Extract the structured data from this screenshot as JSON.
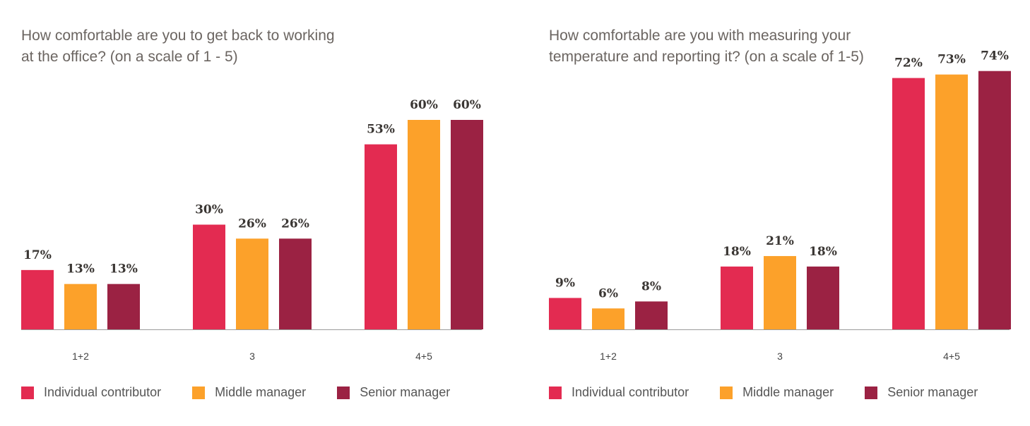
{
  "colors": {
    "individual": "#e32b51",
    "middle": "#fca12a",
    "senior": "#9b2243"
  },
  "chart_data": [
    {
      "type": "bar",
      "title_lines": [
        "How comfortable are you to get back to working",
        "at the office? (on a scale of 1 - 5)"
      ],
      "categories": [
        "1+2",
        "3",
        "4+5"
      ],
      "series": [
        {
          "name": "Individual contributor",
          "values": [
            17,
            30,
            53
          ]
        },
        {
          "name": "Middle manager",
          "values": [
            13,
            26,
            60
          ]
        },
        {
          "name": "Senior manager",
          "values": [
            13,
            26,
            60
          ]
        }
      ],
      "value_labels": [
        [
          "17%",
          "30%",
          "53%"
        ],
        [
          "13%",
          "26%",
          "60%"
        ],
        [
          "13%",
          "26%",
          "60%"
        ]
      ],
      "ylim": [
        0,
        100
      ],
      "grid": false,
      "legend": "bottom"
    },
    {
      "type": "bar",
      "title_lines": [
        "How comfortable are you with measuring your",
        "temperature and reporting it? (on a scale of 1-5)"
      ],
      "categories": [
        "1+2",
        "3",
        "4+5"
      ],
      "series": [
        {
          "name": "Individual contributor",
          "values": [
            9,
            18,
            72
          ]
        },
        {
          "name": "Middle manager",
          "values": [
            6,
            21,
            73
          ]
        },
        {
          "name": "Senior manager",
          "values": [
            8,
            18,
            74
          ]
        }
      ],
      "value_labels": [
        [
          "9%",
          "18%",
          "72%"
        ],
        [
          "6%",
          "21%",
          "73%"
        ],
        [
          "8%",
          "18%",
          "74%"
        ]
      ],
      "ylim": [
        0,
        100
      ],
      "grid": false,
      "legend": "bottom"
    }
  ]
}
